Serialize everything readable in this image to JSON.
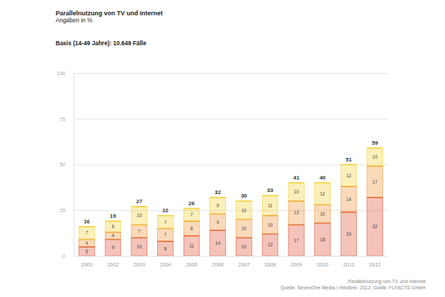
{
  "chart_data": {
    "type": "bar",
    "title": "Parallelnutzung von TV und Internet",
    "subtitle": "Angaben in %",
    "annotations": [
      "Basis (14-49 Jahre): 10.649 Fälle"
    ],
    "source": [
      "Parallelnutzung von TV und Internet",
      "Quelle: SevenOne Media / mindline, 2012; Grafik: FLYACTS GmbH"
    ],
    "categories": [
      "2001",
      "2002",
      "2003",
      "2004",
      "2005",
      "2006",
      "2007",
      "2008",
      "2009",
      "2010",
      "2011",
      "2012"
    ],
    "series": [
      {
        "color": "#e0533a",
        "values": [
          5,
          9,
          10,
          8,
          11,
          14,
          10,
          12,
          17,
          18,
          24,
          32
        ]
      },
      {
        "color": "#f0953a",
        "values": [
          4,
          4,
          7,
          7,
          8,
          9,
          10,
          10,
          13,
          10,
          14,
          17
        ]
      },
      {
        "color": "#f3d23a",
        "values": [
          7,
          6,
          10,
          7,
          7,
          9,
          10,
          11,
          10,
          12,
          12,
          10
        ]
      }
    ],
    "totals": [
      16,
      19,
      27,
      22,
      26,
      32,
      30,
      33,
      41,
      40,
      51,
      59
    ],
    "stacked": true,
    "data_labels": true,
    "grid": true,
    "ylim": [
      0,
      100
    ],
    "yticks": [
      0,
      25,
      50,
      75,
      100
    ]
  }
}
